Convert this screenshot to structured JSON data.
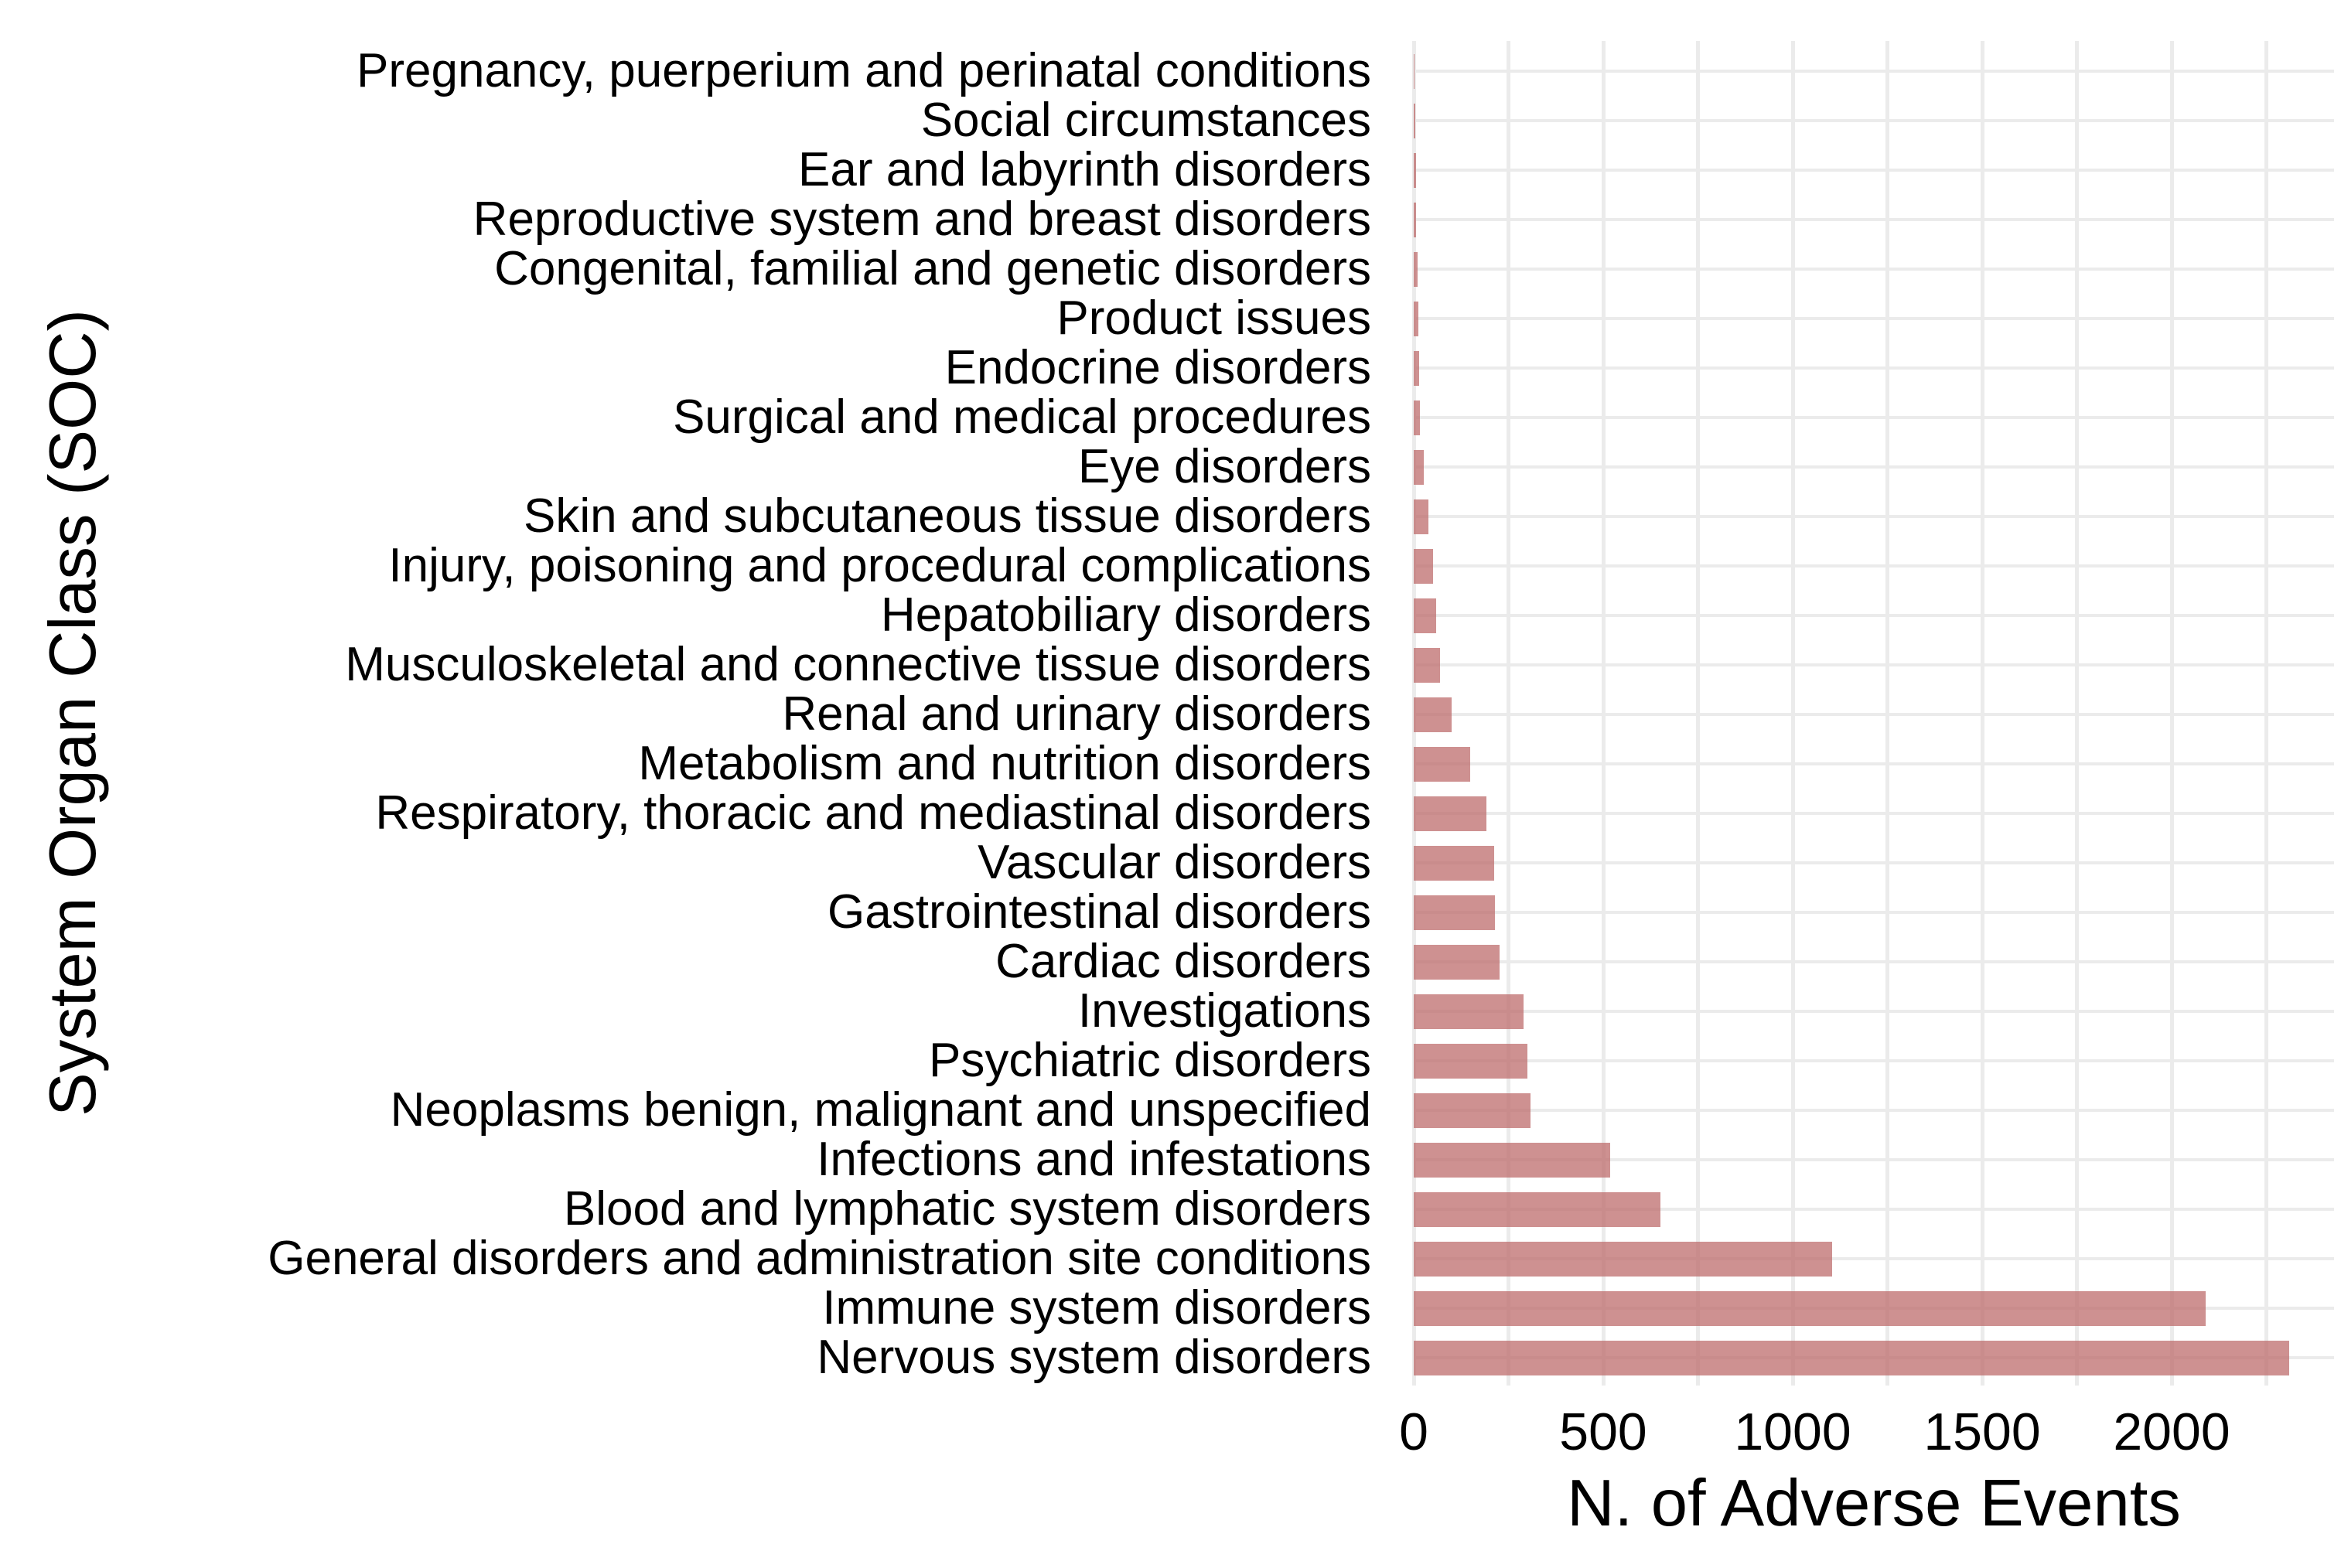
{
  "chart_data": {
    "type": "bar",
    "orientation": "horizontal",
    "title": "",
    "xlabel": "N. of Adverse Events",
    "ylabel": "System Organ Class (SOC)",
    "legend": "none",
    "grid": "on",
    "xlim": [
      0,
      2420
    ],
    "x_ticks": [
      0,
      500,
      1000,
      1500,
      2000
    ],
    "gridline_step": 250,
    "background_color": "#FFFFFF",
    "gridline_color": "#EBEBEB",
    "bar_color": "#C98D8D",
    "categories": [
      "Pregnancy, puerperium and perinatal conditions",
      "Social circumstances",
      "Ear and labyrinth disorders",
      "Reproductive system and breast disorders",
      "Congenital, familial and genetic disorders",
      "Product issues",
      "Endocrine disorders",
      "Surgical and medical procedures",
      "Eye disorders",
      "Skin and subcutaneous tissue disorders",
      "Injury, poisoning and procedural complications",
      "Hepatobiliary disorders",
      "Musculoskeletal and connective tissue disorders",
      "Renal and urinary disorders",
      "Metabolism and nutrition disorders",
      "Respiratory, thoracic and mediastinal disorders",
      "Vascular disorders",
      "Gastrointestinal disorders",
      "Cardiac disorders",
      "Investigations",
      "Psychiatric disorders",
      "Neoplasms benign, malignant and unspecified",
      "Infections and infestations",
      "Blood and lymphatic system disorders",
      "General disorders and administration site conditions",
      "Immune system disorders",
      "Nervous system disorders"
    ],
    "values": [
      2,
      5,
      6,
      7,
      11,
      12,
      14,
      17,
      27,
      39,
      52,
      59,
      69,
      100,
      148,
      192,
      212,
      215,
      227,
      290,
      300,
      308,
      518,
      650,
      1105,
      2090,
      2310
    ]
  }
}
